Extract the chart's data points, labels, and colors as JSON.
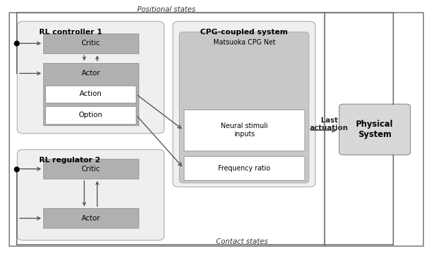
{
  "bg_color": "#ffffff",
  "light_gray_box": "#efefef",
  "medium_gray": "#b0b0b0",
  "cpg_inner_gray": "#c8c8c8",
  "physical_gray": "#d8d8d8",
  "arrow_color": "#555555",
  "text_color": "#000000",
  "figsize": [
    6.3,
    3.9
  ],
  "dpi": 100,
  "positional_label": "Positional states",
  "contact_label": "Contact states",
  "rl1_label": "RL controller 1",
  "rl2_label": "RL regulator 2",
  "cpg_label": "CPG-coupled system",
  "matsuoka_label": "Matsuoka CPG Net",
  "neural_label": "Neural stimuli\ninputs",
  "freq_label": "Frequency ratio",
  "last_act_label": "Last\nactuation",
  "physical_label": "Physical\nSystem",
  "critic_label": "Critic",
  "actor_label": "Actor",
  "action_label": "Action",
  "option_label": "Option"
}
